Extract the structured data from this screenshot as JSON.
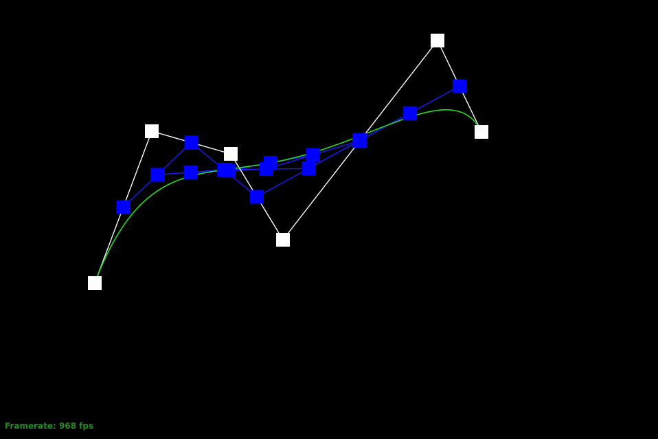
{
  "colors": {
    "background": "#000000",
    "control_polygon": "#ffffff",
    "control_point": "#ffffff",
    "intermediate_polygon": "#1a1aff",
    "intermediate_point": "#0000ff",
    "curve": "#22dd22",
    "framerate_text": "#228b22"
  },
  "status": {
    "framerate_label": "Framerate: 968 fps"
  }
}
